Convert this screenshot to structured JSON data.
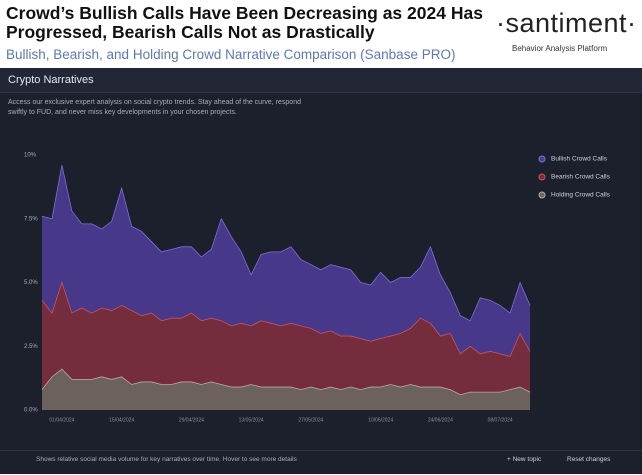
{
  "header": {
    "title": "Crowd’s Bullish Calls Have Been Decreasing as 2024 Has Progressed, Bearish Calls Not as Drastically",
    "subtitle": "Bullish, Bearish, and Holding Crowd Narrative Comparison (Sanbase PRO)",
    "logo": "·santiment·",
    "tagline": "Behavior Analysis Platform"
  },
  "panel": {
    "title": "Crypto Narratives",
    "description": "Access our exclusive expert analysis on social crypto trends. Stay ahead of the curve, respond swiftly to FUD, and never miss key developments in your chosen projects.",
    "footer": "Shows relative social media volume for key narratives over time. Hover to see more details",
    "new_topic": "+ New topic",
    "reset": "Reset changes"
  },
  "chart_data": {
    "type": "area",
    "categories": [
      null,
      null,
      "01/04/2024",
      null,
      null,
      null,
      null,
      null,
      "15/04/2024",
      null,
      null,
      null,
      null,
      null,
      null,
      "29/04/2024",
      null,
      null,
      null,
      null,
      null,
      "13/05/2024",
      null,
      null,
      null,
      null,
      null,
      "27/05/2024",
      null,
      null,
      null,
      null,
      null,
      null,
      "10/06/2024",
      null,
      null,
      null,
      null,
      null,
      "24/06/2024",
      null,
      null,
      null,
      null,
      null,
      "08/07/2024",
      null,
      null,
      null
    ],
    "series": [
      {
        "name": "Bullish Crowd Calls",
        "color": "#4b3b91",
        "line_color": "#7f6fd6",
        "values": [
          7.6,
          7.5,
          9.6,
          7.8,
          7.3,
          7.3,
          7.1,
          7.4,
          8.7,
          7.2,
          7.0,
          6.6,
          6.2,
          6.3,
          6.4,
          6.4,
          6.0,
          6.3,
          7.5,
          6.8,
          6.2,
          5.3,
          6.1,
          6.2,
          6.2,
          6.4,
          5.9,
          5.7,
          5.5,
          5.7,
          5.6,
          5.5,
          5.0,
          4.9,
          5.4,
          5.0,
          5.2,
          5.2,
          5.6,
          6.4,
          5.3,
          4.6,
          3.7,
          3.5,
          4.4,
          4.3,
          4.1,
          3.8,
          5.0,
          4.1
        ]
      },
      {
        "name": "Bearish Crowd Calls",
        "color": "#7a2b36",
        "line_color": "#c9545f",
        "values": [
          4.3,
          3.8,
          5.0,
          3.8,
          4.0,
          3.8,
          4.0,
          3.9,
          4.1,
          3.9,
          3.7,
          3.8,
          3.5,
          3.6,
          3.6,
          3.8,
          3.5,
          3.6,
          3.5,
          3.3,
          3.4,
          3.3,
          3.5,
          3.4,
          3.3,
          3.4,
          3.3,
          3.2,
          3.0,
          3.1,
          2.9,
          2.9,
          2.8,
          2.7,
          2.8,
          2.9,
          3.0,
          3.2,
          3.6,
          3.4,
          2.9,
          3.0,
          2.2,
          2.5,
          2.2,
          2.3,
          2.2,
          2.1,
          3.0,
          2.3
        ]
      },
      {
        "name": "Holding Crowd Calls",
        "color": "#6b665f",
        "line_color": "#b5ada2",
        "values": [
          0.8,
          1.3,
          1.6,
          1.2,
          1.2,
          1.2,
          1.3,
          1.2,
          1.3,
          1.0,
          1.1,
          1.1,
          1.0,
          1.0,
          1.1,
          1.1,
          1.0,
          1.1,
          1.0,
          0.9,
          0.9,
          1.0,
          0.9,
          0.9,
          0.9,
          0.9,
          0.8,
          0.9,
          0.8,
          0.9,
          0.8,
          0.9,
          0.8,
          0.9,
          0.9,
          1.0,
          0.9,
          1.0,
          0.9,
          0.9,
          0.9,
          0.8,
          0.6,
          0.7,
          0.7,
          0.7,
          0.7,
          0.8,
          0.9,
          0.7
        ]
      }
    ],
    "ylim": [
      0,
      10
    ],
    "yticks": [
      {
        "value": 0,
        "label": "0.0%"
      },
      {
        "value": 2.5,
        "label": "2.5%"
      },
      {
        "value": 5,
        "label": "5.0%"
      },
      {
        "value": 7.5,
        "label": "7.5%"
      },
      {
        "value": 10,
        "label": "10%"
      }
    ],
    "legend": "top-right"
  }
}
